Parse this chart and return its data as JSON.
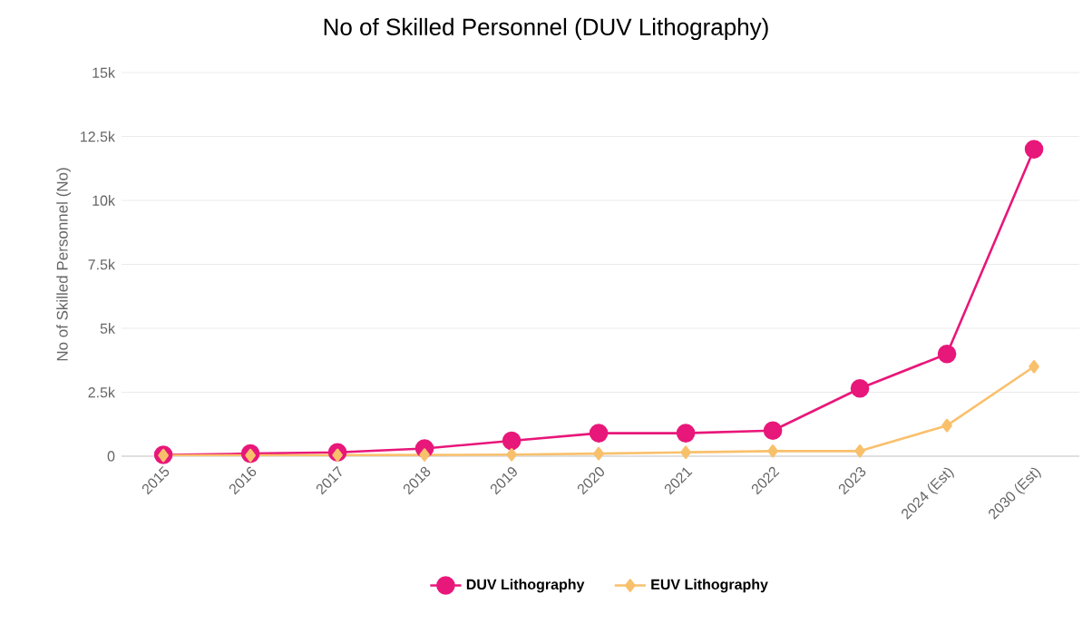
{
  "chart_data": {
    "type": "line",
    "title": "No of Skilled Personnel (DUV Lithography)",
    "ylabel": "No of Skilled Personnel (No)",
    "categories": [
      "2015",
      "2016",
      "2017",
      "2018",
      "2019",
      "2020",
      "2021",
      "2022",
      "2023",
      "2024 (Est)",
      "2030 (Est)"
    ],
    "series": [
      {
        "name": "DUV Lithography",
        "color": "#e8177a",
        "marker": "circle",
        "values": [
          50,
          100,
          150,
          300,
          600,
          900,
          900,
          1000,
          2650,
          4000,
          12000
        ]
      },
      {
        "name": "EUV Lithography",
        "color": "#f9c06c",
        "marker": "diamond",
        "values": [
          30,
          30,
          40,
          50,
          60,
          100,
          150,
          200,
          200,
          1200,
          3500
        ]
      }
    ],
    "ylim": [
      0,
      15000
    ],
    "yticks": [
      0,
      {
        "value": 2500,
        "label": "2.5k"
      },
      {
        "value": 5000,
        "label": "5k"
      },
      {
        "value": 7500,
        "label": "7.5k"
      },
      {
        "value": 10000,
        "label": "10k"
      },
      {
        "value": 12500,
        "label": "12.5k"
      },
      {
        "value": 15000,
        "label": "15k"
      }
    ],
    "grid": "y",
    "legend": "bottom",
    "line_style": "solid"
  }
}
